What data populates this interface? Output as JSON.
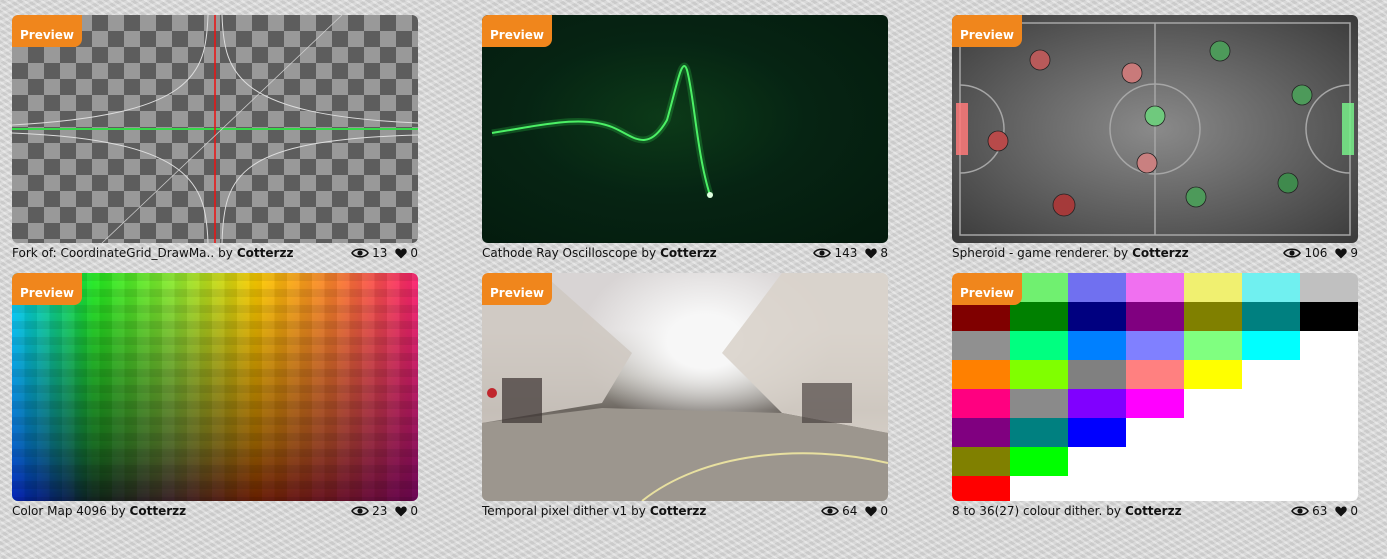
{
  "badge_label": "Preview",
  "by_label": "by",
  "cards": [
    {
      "title": "Fork of: CoordinateGrid_DrawMa..",
      "author": "Cotterzz",
      "views": "13",
      "likes": "0"
    },
    {
      "title": "Cathode Ray Oscilloscope",
      "author": "Cotterzz",
      "views": "143",
      "likes": "8"
    },
    {
      "title": "Spheroid - game renderer.",
      "author": "Cotterzz",
      "views": "106",
      "likes": "9"
    },
    {
      "title": "Color Map 4096",
      "author": "Cotterzz",
      "views": "23",
      "likes": "0"
    },
    {
      "title": "Temporal pixel dither v1",
      "author": "Cotterzz",
      "views": "64",
      "likes": "0"
    },
    {
      "title": "8 to 36(27) colour dither.",
      "author": "Cotterzz",
      "views": "63",
      "likes": "0"
    }
  ],
  "colors": {
    "badge": "#f0861c",
    "oscilloscope": "#2fd44a",
    "palette_empty": "#ffffff"
  },
  "icons": {
    "views": "eye-icon",
    "likes": "heart-icon"
  }
}
